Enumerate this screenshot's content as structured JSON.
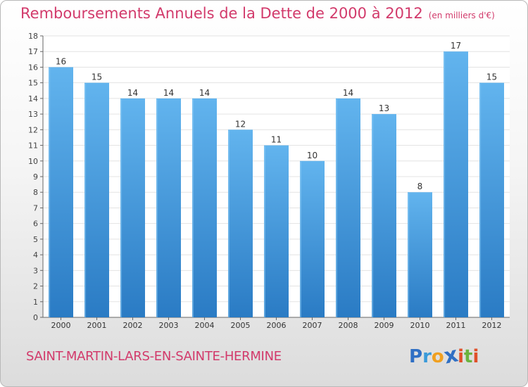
{
  "title": "Remboursements Annuels de la Dette de 2000 à 2012",
  "subtitle": "(en milliers d'€)",
  "town": "SAINT-MARTIN-LARS-EN-SAINTE-HERMINE",
  "logo": {
    "text": "Proxiti",
    "letters": [
      "P",
      "r",
      "o",
      "x",
      "i",
      "t",
      "i"
    ],
    "colors": [
      "#2f6fc4",
      "#3a9ad9",
      "#f0a020",
      "#2f6fc4",
      "#e0502a",
      "#6ab33e",
      "#e0502a"
    ]
  },
  "colors": {
    "title": "#d23a6b",
    "bar_light": "#62b4ee",
    "bar_dark": "#2a7bc4",
    "grid": "#e3e3e3"
  },
  "chart_data": {
    "type": "bar",
    "categories": [
      "2000",
      "2001",
      "2002",
      "2003",
      "2004",
      "2005",
      "2006",
      "2007",
      "2008",
      "2009",
      "2010",
      "2011",
      "2012"
    ],
    "values": [
      16,
      15,
      14,
      14,
      14,
      12,
      11,
      10,
      14,
      13,
      8,
      17,
      15
    ],
    "data_labels": [
      "16",
      "15",
      "14",
      "14",
      "14",
      "12",
      "11",
      "10",
      "14",
      "13",
      "8",
      "17",
      "15"
    ],
    "y_ticks": [
      "0",
      "1",
      "2",
      "3",
      "4",
      "5",
      "6",
      "7",
      "8",
      "9",
      "10",
      "11",
      "12",
      "13",
      "14",
      "15",
      "16",
      "17",
      "18"
    ],
    "ylim": [
      0,
      18
    ],
    "grid": true
  }
}
